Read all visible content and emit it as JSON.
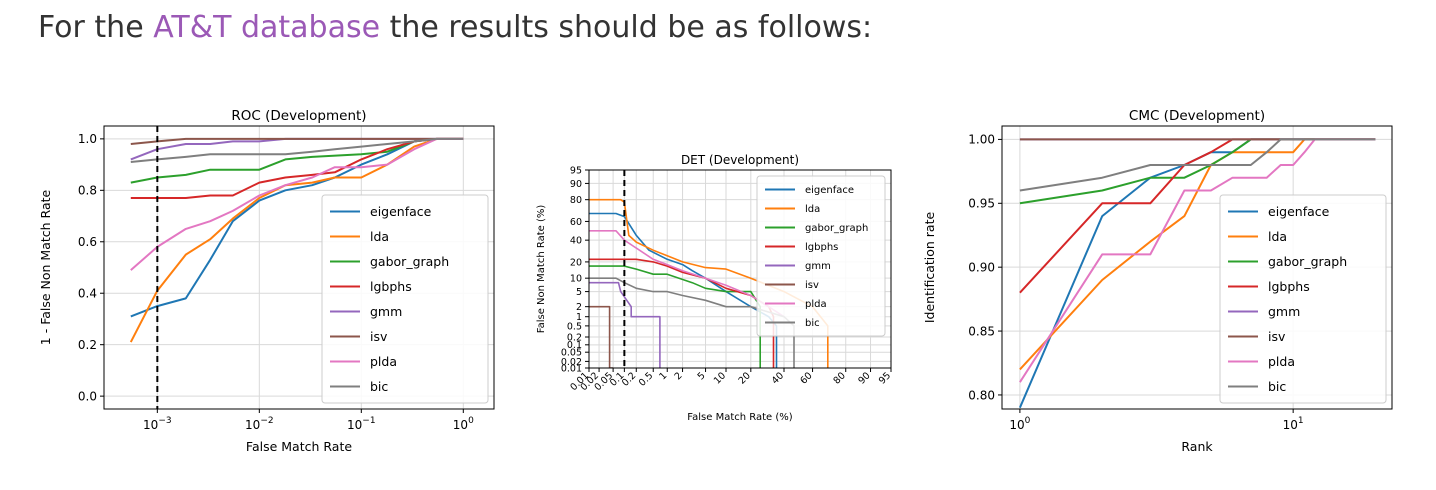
{
  "header": {
    "prefix": "For the ",
    "link_text": "AT&T database",
    "suffix": " the results should be as follows:",
    "link_color": "#9b59b6"
  },
  "colors": {
    "eigenface": "#1f77b4",
    "lda": "#ff7f0e",
    "gabor_graph": "#2ca02c",
    "lgbphs": "#d62728",
    "gmm": "#9467bd",
    "isv": "#8c564b",
    "plda": "#e377c2",
    "bic": "#7f7f7f"
  },
  "chart_data": [
    {
      "id": "roc",
      "type": "line",
      "title": "ROC (Development)",
      "xlabel": "False Match Rate",
      "ylabel": "1 - False Non Match Rate",
      "xscale": "log",
      "xlim": [
        0.0003,
        2
      ],
      "ylim": [
        -0.05,
        1.05
      ],
      "xticks": [
        {
          "value": 0.001,
          "base": "10",
          "exp": "−3"
        },
        {
          "value": 0.01,
          "base": "10",
          "exp": "−2"
        },
        {
          "value": 0.1,
          "base": "10",
          "exp": "−1"
        },
        {
          "value": 1,
          "base": "10",
          "exp": "0"
        }
      ],
      "yticks": [
        {
          "value": 0.0,
          "label": "0.0"
        },
        {
          "value": 0.2,
          "label": "0.2"
        },
        {
          "value": 0.4,
          "label": "0.4"
        },
        {
          "value": 0.6,
          "label": "0.6"
        },
        {
          "value": 0.8,
          "label": "0.8"
        },
        {
          "value": 1.0,
          "label": "1.0"
        }
      ],
      "grid": true,
      "vline": 0.001,
      "legend": "lower-right",
      "series": [
        {
          "name": "eigenface",
          "x": [
            0.00055,
            0.001,
            0.0019,
            0.0033,
            0.0055,
            0.01,
            0.018,
            0.033,
            0.055,
            0.1,
            0.18,
            0.33,
            0.55,
            1
          ],
          "y": [
            0.31,
            0.35,
            0.38,
            0.53,
            0.68,
            0.76,
            0.8,
            0.82,
            0.85,
            0.9,
            0.94,
            0.99,
            1.0,
            1.0
          ]
        },
        {
          "name": "lda",
          "x": [
            0.00055,
            0.001,
            0.0019,
            0.0033,
            0.0055,
            0.01,
            0.018,
            0.033,
            0.055,
            0.1,
            0.18,
            0.33,
            0.55,
            1
          ],
          "y": [
            0.21,
            0.41,
            0.55,
            0.61,
            0.69,
            0.77,
            0.82,
            0.83,
            0.85,
            0.85,
            0.9,
            0.97,
            1.0,
            1.0
          ]
        },
        {
          "name": "gabor_graph",
          "x": [
            0.00055,
            0.001,
            0.0019,
            0.0033,
            0.0055,
            0.01,
            0.018,
            0.033,
            0.1,
            0.18,
            0.33,
            0.55,
            1
          ],
          "y": [
            0.83,
            0.85,
            0.86,
            0.88,
            0.88,
            0.88,
            0.92,
            0.93,
            0.94,
            0.95,
            0.99,
            1.0,
            1.0
          ]
        },
        {
          "name": "lgbphs",
          "x": [
            0.00055,
            0.001,
            0.0019,
            0.0033,
            0.0055,
            0.01,
            0.018,
            0.033,
            0.055,
            0.1,
            0.18,
            0.33,
            0.55,
            1
          ],
          "y": [
            0.77,
            0.77,
            0.77,
            0.78,
            0.78,
            0.83,
            0.85,
            0.86,
            0.87,
            0.92,
            0.96,
            0.99,
            1.0,
            1.0
          ]
        },
        {
          "name": "gmm",
          "x": [
            0.00055,
            0.001,
            0.0019,
            0.0033,
            0.0055,
            0.01,
            0.018,
            1
          ],
          "y": [
            0.92,
            0.96,
            0.98,
            0.98,
            0.99,
            0.99,
            1.0,
            1.0
          ]
        },
        {
          "name": "isv",
          "x": [
            0.00055,
            0.001,
            0.0019,
            1
          ],
          "y": [
            0.98,
            0.99,
            1.0,
            1.0
          ]
        },
        {
          "name": "plda",
          "x": [
            0.00055,
            0.001,
            0.0019,
            0.0033,
            0.0055,
            0.01,
            0.018,
            0.033,
            0.055,
            0.1,
            0.18,
            0.33,
            0.55,
            1
          ],
          "y": [
            0.49,
            0.58,
            0.65,
            0.68,
            0.72,
            0.78,
            0.82,
            0.85,
            0.89,
            0.89,
            0.9,
            0.96,
            1.0,
            1.0
          ]
        },
        {
          "name": "bic",
          "x": [
            0.00055,
            0.001,
            0.0019,
            0.0033,
            0.0055,
            0.01,
            0.018,
            0.033,
            0.055,
            0.1,
            0.18,
            0.33,
            0.55,
            1
          ],
          "y": [
            0.91,
            0.92,
            0.93,
            0.94,
            0.94,
            0.94,
            0.94,
            0.95,
            0.96,
            0.97,
            0.98,
            0.99,
            1.0,
            1.0
          ]
        }
      ]
    },
    {
      "id": "det",
      "type": "line",
      "title": "DET (Development)",
      "xlabel": "False Match Rate (%)",
      "ylabel": "False Non Match Rate (%)",
      "xscale": "probit",
      "yscale": "probit",
      "xlim": [
        0.01,
        95
      ],
      "ylim": [
        0.01,
        95
      ],
      "xticks": [
        {
          "value": 0.01,
          "label": "0.01"
        },
        {
          "value": 0.02,
          "label": "0.02"
        },
        {
          "value": 0.05,
          "label": "0.05"
        },
        {
          "value": 0.1,
          "label": "0.1"
        },
        {
          "value": 0.2,
          "label": "0.2"
        },
        {
          "value": 0.5,
          "label": "0.5"
        },
        {
          "value": 1,
          "label": "1"
        },
        {
          "value": 2,
          "label": "2"
        },
        {
          "value": 5,
          "label": "5"
        },
        {
          "value": 10,
          "label": "10"
        },
        {
          "value": 20,
          "label": "20"
        },
        {
          "value": 40,
          "label": "40"
        },
        {
          "value": 60,
          "label": "60"
        },
        {
          "value": 80,
          "label": "80"
        },
        {
          "value": 90,
          "label": "90"
        },
        {
          "value": 95,
          "label": "95"
        }
      ],
      "yticks": [
        {
          "value": 0.01,
          "label": "0.01"
        },
        {
          "value": 0.02,
          "label": "0.02"
        },
        {
          "value": 0.05,
          "label": "0.05"
        },
        {
          "value": 0.1,
          "label": "0.1"
        },
        {
          "value": 0.2,
          "label": "0.2"
        },
        {
          "value": 0.5,
          "label": "0.5"
        },
        {
          "value": 1,
          "label": "1"
        },
        {
          "value": 2,
          "label": "2"
        },
        {
          "value": 5,
          "label": "5"
        },
        {
          "value": 10,
          "label": "10"
        },
        {
          "value": 20,
          "label": "20"
        },
        {
          "value": 40,
          "label": "40"
        },
        {
          "value": 60,
          "label": "60"
        },
        {
          "value": 80,
          "label": "80"
        },
        {
          "value": 90,
          "label": "90"
        },
        {
          "value": 95,
          "label": "95"
        }
      ],
      "grid": true,
      "vline": 0.1,
      "legend": "upper-right",
      "series": [
        {
          "name": "eigenface",
          "x": [
            0.01,
            0.06,
            0.1,
            0.2,
            0.4,
            1,
            2,
            3,
            5,
            10,
            20,
            30,
            35,
            35
          ],
          "y": [
            68,
            68,
            65,
            45,
            30,
            22,
            18,
            14,
            10,
            5,
            2,
            1,
            0.5,
            0.01
          ]
        },
        {
          "name": "lda",
          "x": [
            0.01,
            0.08,
            0.1,
            0.13,
            0.2,
            0.5,
            1,
            2,
            5,
            10,
            20,
            40,
            60,
            70,
            70
          ],
          "y": [
            80,
            80,
            78,
            45,
            38,
            30,
            25,
            20,
            16,
            15,
            10,
            5,
            2,
            0.5,
            0.01
          ]
        },
        {
          "name": "gabor_graph",
          "x": [
            0.01,
            0.1,
            0.2,
            0.5,
            1,
            3,
            5,
            10,
            20,
            25,
            25
          ],
          "y": [
            17,
            17,
            15,
            12,
            12,
            8,
            6,
            5,
            5,
            2,
            0.01
          ]
        },
        {
          "name": "lgbphs",
          "x": [
            0.01,
            0.2,
            0.5,
            1,
            2,
            5,
            10,
            20,
            30,
            33,
            33
          ],
          "y": [
            22,
            22,
            20,
            17,
            13,
            10,
            6,
            4,
            2,
            1,
            0.01
          ]
        },
        {
          "name": "gmm",
          "x": [
            0.01,
            0.07,
            0.08,
            0.15,
            0.15,
            0.4,
            0.7,
            0.7
          ],
          "y": [
            8,
            8,
            5,
            2,
            1,
            1,
            1,
            0.01
          ]
        },
        {
          "name": "isv",
          "x": [
            0.01,
            0.04,
            0.04,
            0.05
          ],
          "y": [
            2,
            2,
            0.01,
            0.01
          ]
        },
        {
          "name": "plda",
          "x": [
            0.01,
            0.06,
            0.1,
            0.2,
            0.5,
            1,
            2,
            5,
            10,
            20,
            30,
            40
          ],
          "y": [
            50,
            50,
            40,
            32,
            22,
            18,
            14,
            10,
            7,
            4,
            2,
            1
          ]
        },
        {
          "name": "bic",
          "x": [
            0.01,
            0.06,
            0.1,
            0.2,
            0.5,
            1,
            2,
            5,
            10,
            20,
            40,
            47,
            47
          ],
          "y": [
            10,
            10,
            8,
            6,
            5,
            5,
            4,
            3,
            2,
            2,
            1,
            0.5,
            0.01
          ]
        }
      ]
    },
    {
      "id": "cmc",
      "type": "line",
      "title": "CMC (Development)",
      "xlabel": "Rank",
      "ylabel": "Identification rate",
      "xscale": "log",
      "xlim": [
        0.86,
        23
      ],
      "ylim": [
        0.789,
        1.0105
      ],
      "xticks": [
        {
          "value": 1,
          "base": "10",
          "exp": "0"
        },
        {
          "value": 10,
          "base": "10",
          "exp": "1"
        }
      ],
      "yticks": [
        {
          "value": 0.8,
          "label": "0.80"
        },
        {
          "value": 0.85,
          "label": "0.85"
        },
        {
          "value": 0.9,
          "label": "0.90"
        },
        {
          "value": 0.95,
          "label": "0.95"
        },
        {
          "value": 1.0,
          "label": "1.00"
        }
      ],
      "grid": true,
      "legend": "lower-right",
      "series": [
        {
          "name": "eigenface",
          "x": [
            1,
            2,
            3,
            4,
            5,
            6,
            7,
            20
          ],
          "y": [
            0.79,
            0.94,
            0.97,
            0.98,
            0.99,
            0.99,
            1.0,
            1.0
          ]
        },
        {
          "name": "lda",
          "x": [
            1,
            2,
            3,
            4,
            5,
            6,
            7,
            8,
            9,
            10,
            11,
            20
          ],
          "y": [
            0.82,
            0.89,
            0.92,
            0.94,
            0.98,
            0.99,
            0.99,
            0.99,
            0.99,
            0.99,
            1.0,
            1.0
          ]
        },
        {
          "name": "gabor_graph",
          "x": [
            1,
            2,
            3,
            4,
            5,
            6,
            7,
            20
          ],
          "y": [
            0.95,
            0.96,
            0.97,
            0.97,
            0.98,
            0.99,
            1.0,
            1.0
          ]
        },
        {
          "name": "lgbphs",
          "x": [
            1,
            2,
            3,
            4,
            5,
            6,
            20
          ],
          "y": [
            0.88,
            0.95,
            0.95,
            0.98,
            0.99,
            1.0,
            1.0
          ]
        },
        {
          "name": "gmm",
          "x": [
            1,
            20
          ],
          "y": [
            1.0,
            1.0
          ]
        },
        {
          "name": "isv",
          "x": [
            1,
            20
          ],
          "y": [
            1.0,
            1.0
          ]
        },
        {
          "name": "plda",
          "x": [
            1,
            2,
            3,
            4,
            5,
            6,
            7,
            8,
            9,
            10,
            11,
            12,
            20
          ],
          "y": [
            0.81,
            0.91,
            0.91,
            0.96,
            0.96,
            0.97,
            0.97,
            0.97,
            0.98,
            0.98,
            0.99,
            1.0,
            1.0
          ]
        },
        {
          "name": "bic",
          "x": [
            1,
            2,
            3,
            4,
            5,
            6,
            7,
            8,
            9,
            20
          ],
          "y": [
            0.96,
            0.97,
            0.98,
            0.98,
            0.98,
            0.98,
            0.98,
            0.99,
            1.0,
            1.0
          ]
        }
      ]
    }
  ]
}
